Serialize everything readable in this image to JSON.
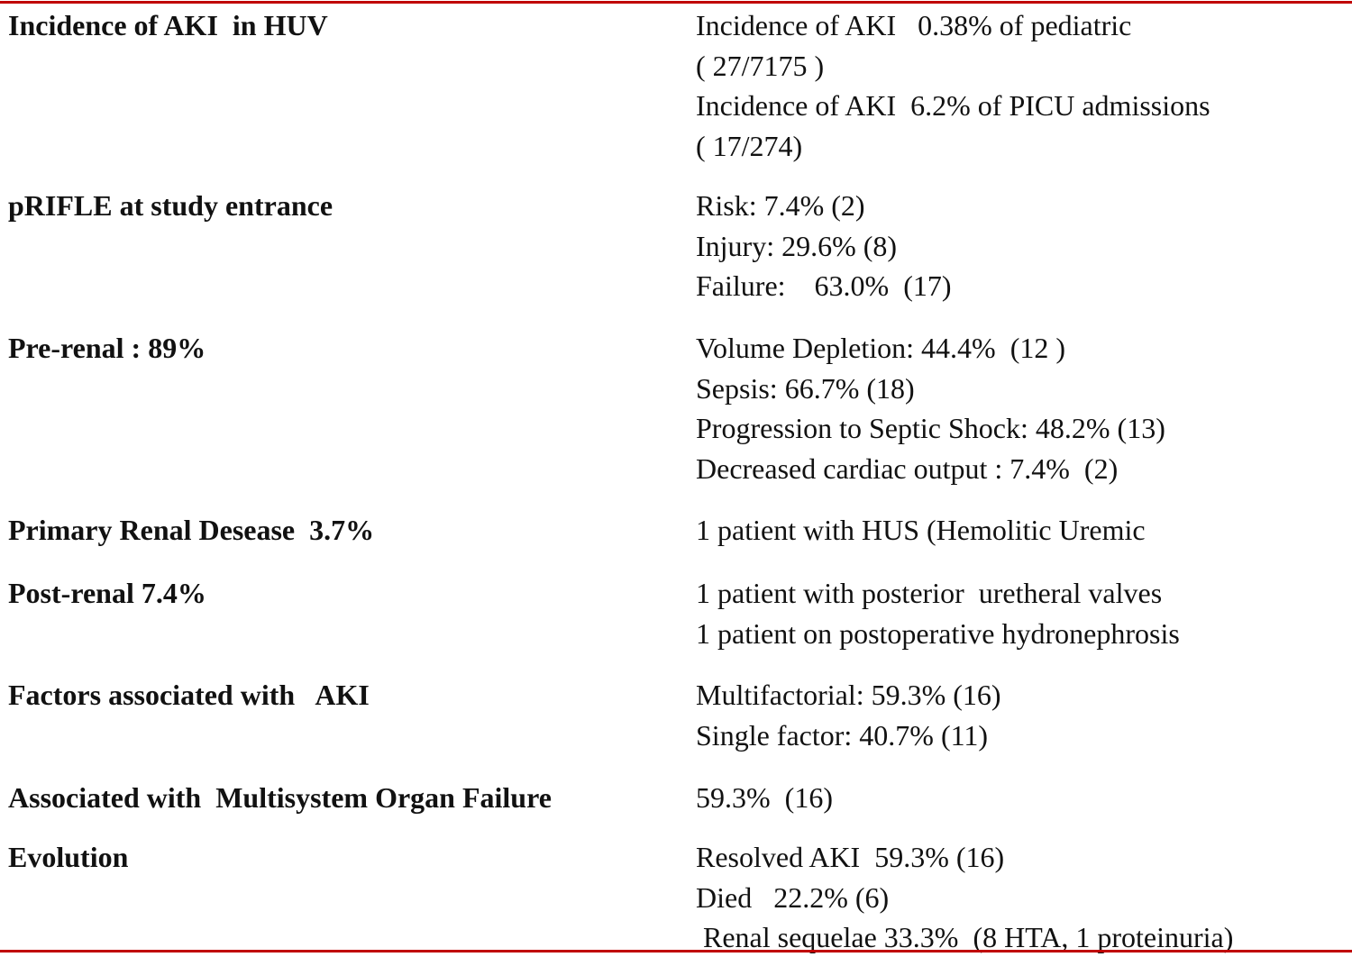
{
  "table": {
    "rows": [
      {
        "label": "Incidence of AKI  in HUV",
        "lines": [
          "Incidence of AKI   0.38% of pediatric",
          "( 27/7175 )",
          "Incidence of AKI  6.2% of PICU admissions",
          "( 17/274)"
        ]
      },
      {
        "label": "pRIFLE at study entrance",
        "lines": [
          "Risk: 7.4% (2)",
          "Injury: 29.6% (8)",
          "Failure:    63.0%  (17)"
        ]
      },
      {
        "label": "Pre-renal : 89%",
        "lines": [
          "Volume Depletion: 44.4%  (12 )",
          "Sepsis: 66.7% (18)",
          "Progression to Septic Shock: 48.2% (13)",
          "Decreased cardiac output : 7.4%  (2)"
        ]
      },
      {
        "label": "Primary Renal Desease  3.7%",
        "lines": [
          "1 patient with HUS (Hemolitic Uremic"
        ]
      },
      {
        "label": "Post-renal 7.4%",
        "lines": [
          "1 patient with posterior  uretheral valves",
          "1 patient on postoperative hydronephrosis"
        ]
      },
      {
        "label": "Factors associated with   AKI",
        "lines": [
          "Multifactorial: 59.3% (16)",
          "Single factor: 40.7% (11)"
        ]
      },
      {
        "label": "Associated with  Multisystem Organ Failure",
        "lines": [
          "59.3%  (16)"
        ]
      },
      {
        "label": "Evolution",
        "lines": [
          "Resolved AKI  59.3% (16)",
          "Died   22.2% (6)",
          "Renal sequelae 33.3%  (8 HTA, 1 proteinuria)"
        ]
      }
    ]
  }
}
